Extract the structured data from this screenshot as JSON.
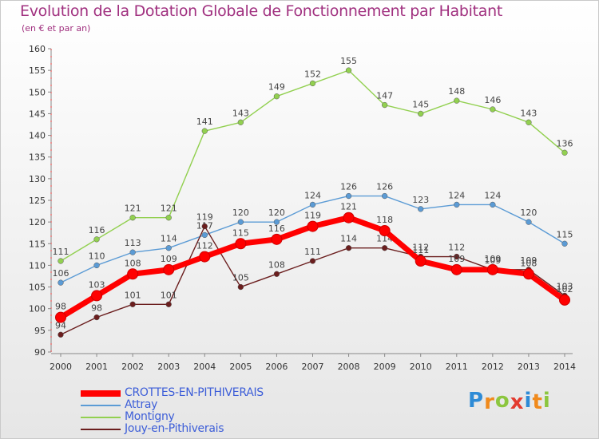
{
  "header": {
    "title": "Evolution de la Dotation Globale de Fonctionnement par Habitant",
    "subtitle": "(en € et par an)"
  },
  "brand": {
    "letters": [
      "P",
      "r",
      "o",
      "x",
      "i",
      "t",
      "i"
    ],
    "colors": [
      "#2e8bd6",
      "#f08a1c",
      "#8cc63f",
      "#e33b2f",
      "#2e8bd6",
      "#f08a1c",
      "#8cc63f"
    ]
  },
  "chart_data": {
    "type": "line",
    "title": "Evolution de la Dotation Globale de Fonctionnement par Habitant",
    "subtitle": "(en € et par an)",
    "xlabel": "",
    "ylabel": "",
    "x": [
      "2000",
      "2001",
      "2002",
      "2003",
      "2004",
      "2005",
      "2006",
      "2007",
      "2008",
      "2009",
      "2010",
      "2011",
      "2012",
      "2013",
      "2014"
    ],
    "ylim": [
      90,
      160
    ],
    "yticks": [
      90,
      95,
      100,
      105,
      110,
      115,
      120,
      125,
      130,
      135,
      140,
      145,
      150,
      155,
      160
    ],
    "grid": false,
    "legend_position": "bottom-left",
    "series": [
      {
        "name": "CROTTES-EN-PITHIVERAIS",
        "color": "#ff0000",
        "emphasis": true,
        "values": [
          98,
          103,
          108,
          109,
          112,
          115,
          116,
          119,
          121,
          118,
          111,
          109,
          109,
          108,
          102
        ]
      },
      {
        "name": "Attray",
        "color": "#5b9bd5",
        "values": [
          106,
          110,
          113,
          114,
          117,
          120,
          120,
          124,
          126,
          126,
          123,
          124,
          124,
          120,
          115
        ]
      },
      {
        "name": "Montigny",
        "color": "#92d050",
        "values": [
          111,
          116,
          121,
          121,
          141,
          143,
          149,
          152,
          155,
          147,
          145,
          148,
          146,
          143,
          136
        ]
      },
      {
        "name": "Jouy-en-Pithiverais",
        "color": "#6b1e1e",
        "values": [
          94,
          98,
          101,
          101,
          119,
          105,
          108,
          111,
          114,
          114,
          112,
          112,
          109,
          109,
          103
        ]
      }
    ]
  }
}
